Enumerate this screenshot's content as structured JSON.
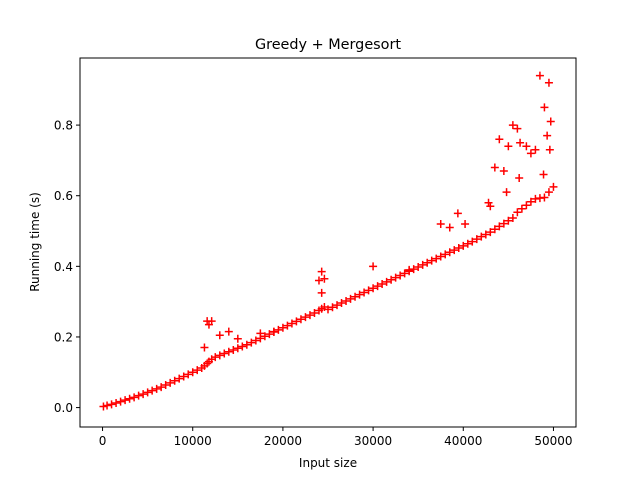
{
  "chart_data": {
    "type": "scatter",
    "title": "Greedy + Mergesort",
    "xlabel": "Input size",
    "ylabel": "Running time (s)",
    "xlim": [
      -2500,
      52500
    ],
    "ylim": [
      -0.055,
      0.99
    ],
    "xticks": [
      0,
      10000,
      20000,
      30000,
      40000,
      50000
    ],
    "xtick_labels": [
      "0",
      "10000",
      "20000",
      "30000",
      "40000",
      "50000"
    ],
    "yticks": [
      0.0,
      0.2,
      0.4,
      0.6,
      0.8
    ],
    "ytick_labels": [
      "0.0",
      "0.2",
      "0.4",
      "0.6",
      "0.8"
    ],
    "grid": false,
    "marker": "+",
    "color": "#ff0000",
    "series": [
      {
        "x": [
          100,
          500,
          1000,
          1500,
          2000,
          2500,
          3000,
          3500,
          4000,
          4500,
          5000,
          5500,
          6000,
          6500,
          7000,
          7500,
          8000,
          8500,
          9000,
          9500,
          10000,
          10500,
          11000,
          11300,
          11600,
          11800,
          12100,
          12500,
          13000,
          13500,
          14000,
          14500,
          15000,
          15500,
          16000,
          16500,
          17000,
          17500,
          18000,
          18500,
          19000,
          19500,
          20000,
          20500,
          21000,
          21500,
          22000,
          22500,
          23000,
          23500,
          24000,
          24300,
          24600,
          25000,
          25500,
          26000,
          26500,
          27000,
          27500,
          28000,
          28500,
          29000,
          29500,
          30000,
          30500,
          31000,
          31500,
          32000,
          32500,
          33000,
          33500,
          34000,
          34500,
          35000,
          35500,
          36000,
          36500,
          37000,
          37500,
          38000,
          38500,
          39000,
          39500,
          40000,
          40500,
          41000,
          41500,
          42000,
          42500,
          43000,
          43500,
          44000,
          44500,
          45000,
          45500,
          46000,
          46500,
          47000,
          47500,
          48000,
          48500,
          49000,
          49500,
          50000,
          11600,
          11800,
          12100,
          11300,
          13000,
          14000,
          15000,
          17500,
          19000,
          24300,
          24000,
          24600,
          24300,
          30000,
          34000,
          37500,
          38500,
          43000,
          44000,
          43500,
          44500,
          45000,
          45500,
          46000,
          46300,
          47000,
          47500,
          48000,
          48500,
          49000,
          49500,
          49700,
          49300,
          48900,
          49600,
          46200,
          44800,
          42800,
          39400,
          40200
        ],
        "y": [
          0.003,
          0.006,
          0.009,
          0.013,
          0.017,
          0.021,
          0.025,
          0.029,
          0.034,
          0.038,
          0.043,
          0.048,
          0.053,
          0.058,
          0.064,
          0.07,
          0.076,
          0.082,
          0.088,
          0.094,
          0.1,
          0.106,
          0.112,
          0.118,
          0.125,
          0.13,
          0.137,
          0.143,
          0.148,
          0.153,
          0.158,
          0.163,
          0.168,
          0.173,
          0.178,
          0.184,
          0.19,
          0.196,
          0.202,
          0.208,
          0.214,
          0.22,
          0.226,
          0.232,
          0.238,
          0.244,
          0.25,
          0.256,
          0.262,
          0.268,
          0.275,
          0.28,
          0.285,
          0.278,
          0.284,
          0.29,
          0.296,
          0.302,
          0.308,
          0.314,
          0.32,
          0.326,
          0.332,
          0.338,
          0.344,
          0.35,
          0.356,
          0.362,
          0.368,
          0.374,
          0.38,
          0.386,
          0.392,
          0.398,
          0.404,
          0.41,
          0.416,
          0.422,
          0.428,
          0.434,
          0.44,
          0.446,
          0.452,
          0.458,
          0.464,
          0.47,
          0.477,
          0.484,
          0.49,
          0.497,
          0.505,
          0.513,
          0.521,
          0.529,
          0.537,
          0.553,
          0.563,
          0.573,
          0.583,
          0.591,
          0.593,
          0.595,
          0.61,
          0.625,
          0.245,
          0.235,
          0.245,
          0.17,
          0.205,
          0.215,
          0.195,
          0.21,
          0.215,
          0.385,
          0.36,
          0.365,
          0.325,
          0.4,
          0.39,
          0.52,
          0.51,
          0.57,
          0.76,
          0.68,
          0.67,
          0.74,
          0.8,
          0.79,
          0.75,
          0.74,
          0.72,
          0.73,
          0.94,
          0.85,
          0.92,
          0.81,
          0.77,
          0.66,
          0.73,
          0.65,
          0.61,
          0.58,
          0.55,
          0.52
        ]
      }
    ]
  }
}
